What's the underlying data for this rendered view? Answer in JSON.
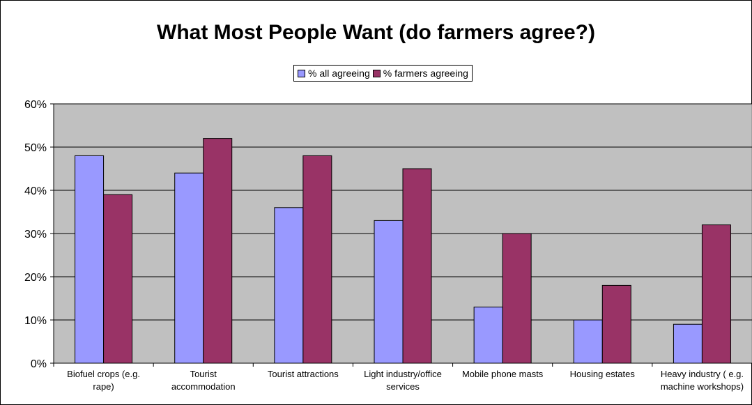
{
  "chart_data": {
    "type": "bar",
    "title": "What Most People Want (do farmers agree?)",
    "categories": [
      [
        "Biofuel crops (e.g.",
        "rape)"
      ],
      [
        "Tourist",
        "accommodation"
      ],
      [
        "Tourist attractions"
      ],
      [
        "Light industry/office",
        "services"
      ],
      [
        "Mobile phone masts"
      ],
      [
        "Housing estates"
      ],
      [
        "Heavy industry ( e.g.",
        "machine workshops)"
      ]
    ],
    "series": [
      {
        "name": "% all agreeing",
        "color": "#9999ff",
        "values": [
          48,
          44,
          36,
          33,
          13,
          10,
          9
        ]
      },
      {
        "name": "% farmers agreeing",
        "color": "#993366",
        "values": [
          39,
          52,
          48,
          45,
          30,
          18,
          32
        ]
      }
    ],
    "y_ticks": [
      "0%",
      "10%",
      "20%",
      "30%",
      "40%",
      "50%",
      "60%"
    ],
    "ylim": [
      0,
      60
    ],
    "plot_background": "#c0c0c0",
    "grid": true,
    "legend_position": "top-center"
  }
}
